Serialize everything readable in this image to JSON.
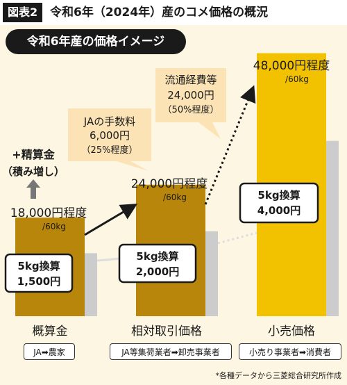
{
  "header": {
    "tag": "図表2",
    "title": "令和6年（2024年）産のコメ価格の概況"
  },
  "subtitle": "令和6年産の価格イメージ",
  "chart_data": {
    "type": "bar",
    "categories": [
      "概算金",
      "相対取引価格",
      "小売価格"
    ],
    "series": [
      {
        "values": [
          18000,
          24000,
          48000
        ]
      },
      {
        "values": [
          11500,
          15500,
          32000
        ]
      }
    ],
    "ylim": [
      0,
      52000
    ],
    "per_unit": "/60kg",
    "value_labels": [
      "18,000円程度",
      "24,000円程度",
      "48,000円程度"
    ],
    "conversions": [
      {
        "line1": "5kg換算",
        "line2": "1,500円"
      },
      {
        "line1": "5kg換算",
        "line2": "2,000円"
      },
      {
        "line1": "5kg換算",
        "line2": "4,000円"
      }
    ],
    "annotations": {
      "bonus": {
        "line1": "+精算金",
        "line2": "（積み増し）"
      },
      "ja_fee": {
        "line1": "JAの手数料",
        "line2": "6,000円",
        "line3": "（25%程度）"
      },
      "distribution": {
        "line1": "流通経費等",
        "line2": "24,000円",
        "line3": "（50%程度）"
      }
    },
    "flow_labels": [
      "JA➡農家",
      "JA等集荷業者➡卸売事業者",
      "小売り事業者➡消費者"
    ],
    "colors": {
      "bar_gold": "#b8860b",
      "bar_yellow": "#f2c200",
      "bar_gray": "#cccccc",
      "background": "#fdf6e3",
      "bubble": "#fbe3b5",
      "arrow": "#444444"
    }
  },
  "source": "*各種データから三菱総合研究所作成"
}
